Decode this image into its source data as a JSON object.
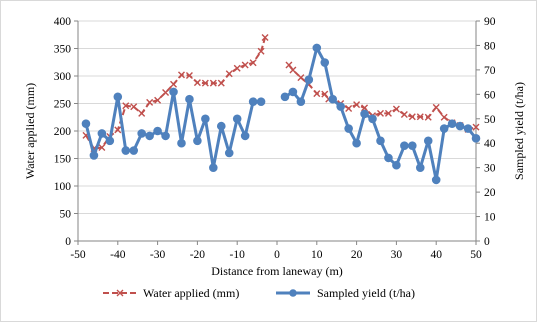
{
  "chart_data": {
    "type": "line",
    "xlabel": "Distance from laneway (m)",
    "ylabel": "Water applied  (mm)",
    "y2label": "Sampled yield  (t/ha)",
    "xlim": [
      -50,
      50
    ],
    "ylim": [
      0,
      400
    ],
    "y2lim": [
      0,
      90
    ],
    "x_ticks": [
      -50,
      -40,
      -30,
      -20,
      -10,
      0,
      10,
      20,
      30,
      40,
      50
    ],
    "y_ticks": [
      0,
      50,
      100,
      150,
      200,
      250,
      300,
      350,
      400
    ],
    "y2_ticks": [
      0,
      10,
      20,
      30,
      40,
      50,
      60,
      70,
      80,
      90
    ],
    "grid": "horizontal",
    "legend": "bottom",
    "series": [
      {
        "name": "Water applied  (mm)",
        "axis": "left",
        "color": "#c0504d",
        "marker": "x",
        "dash": true,
        "segments": [
          {
            "x": [
              -48,
              -46,
              -44,
              -42,
              -40,
              -38,
              -36,
              -34,
              -32,
              -30,
              -28,
              -26,
              -24,
              -22,
              -20,
              -18,
              -16,
              -14,
              -12,
              -10,
              -8,
              -6,
              -4,
              -3
            ],
            "y": [
              192,
              168,
              170,
              190,
              202,
              246,
              244,
              232,
              252,
              256,
              270,
              285,
              302,
              301,
              288,
              287,
              287,
              287,
              304,
              314,
              320,
              324,
              345,
              370
            ]
          },
          {
            "x": [
              3,
              4,
              6,
              8,
              10,
              12,
              13,
              16,
              18,
              20,
              22,
              24,
              26,
              28,
              30,
              32,
              34,
              36,
              38,
              40,
              42,
              44,
              46,
              48,
              50
            ],
            "y": [
              320,
              311,
              297,
              285,
              268,
              267,
              258,
              250,
              241,
              248,
              242,
              228,
              232,
              232,
              240,
              230,
              226,
              226,
              225,
              243,
              225,
              215,
              210,
              203,
              207
            ]
          }
        ]
      },
      {
        "name": "Sampled yield  (t/ha)",
        "axis": "right",
        "color": "#4f81bd",
        "marker": "circle",
        "dash": false,
        "segments": [
          {
            "x": [
              -48,
              -46,
              -44,
              -42,
              -40,
              -38,
              -36,
              -34,
              -32,
              -30,
              -28,
              -26,
              -24,
              -22,
              -20,
              -18,
              -16,
              -14,
              -12,
              -10,
              -8,
              -6,
              -4
            ],
            "y": [
              48,
              35,
              44,
              41,
              59,
              37,
              37,
              44,
              43,
              45,
              43,
              61,
              40,
              58,
              41,
              50,
              30,
              47,
              36,
              50,
              43,
              57,
              57
            ]
          },
          {
            "x": [
              2,
              4,
              6,
              8,
              10,
              12,
              14,
              16,
              18,
              20,
              22,
              24,
              26,
              28,
              30,
              32,
              34,
              36,
              38,
              40,
              42,
              44,
              46,
              48,
              50
            ],
            "y": [
              59,
              61,
              57,
              66,
              79,
              73,
              58,
              55,
              46,
              40,
              52,
              50,
              41,
              34,
              31,
              39,
              39,
              30,
              41,
              25,
              46,
              48,
              47,
              46,
              42
            ]
          }
        ]
      }
    ]
  }
}
